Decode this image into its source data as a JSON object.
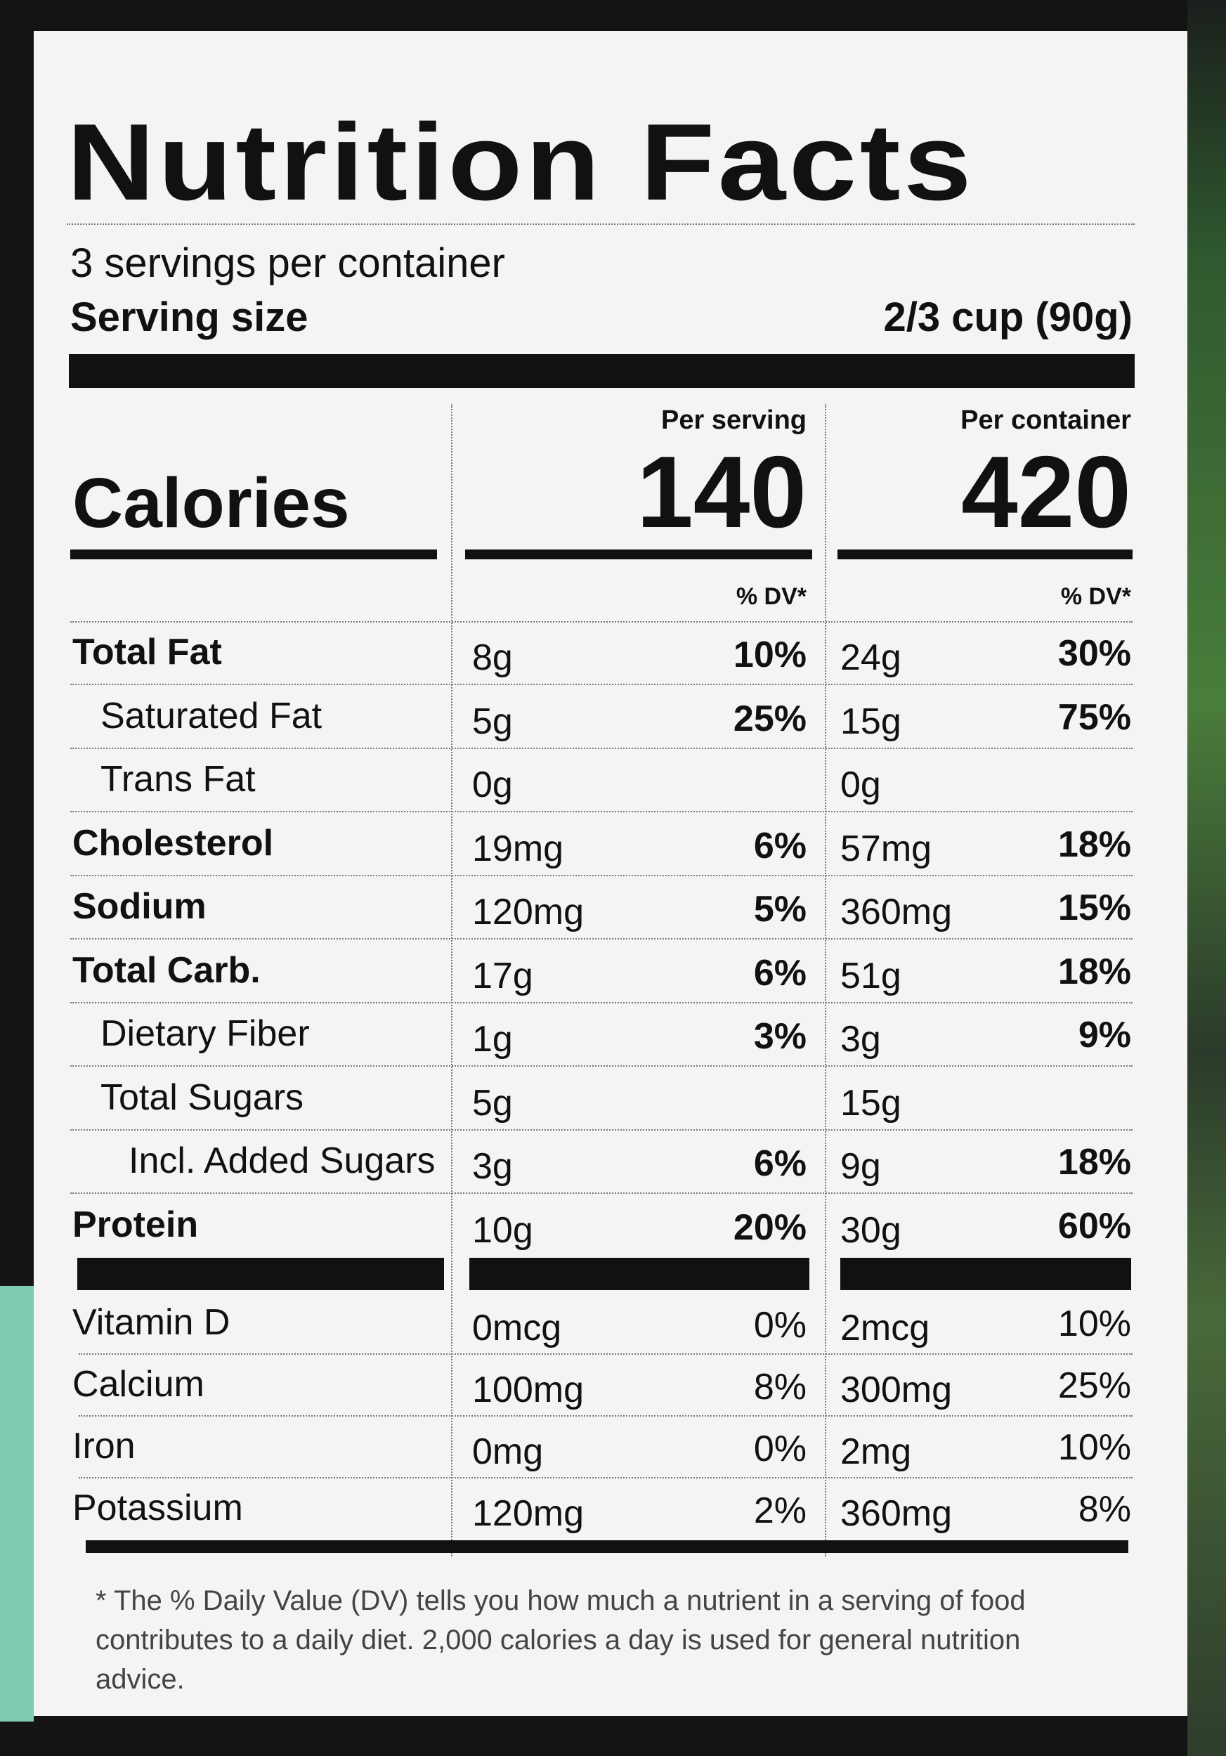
{
  "title": "Nutrition Facts",
  "servings_per_container": "3 servings per container",
  "serving_size": {
    "label": "Serving size",
    "value": "2/3 cup (90g)"
  },
  "columns": {
    "per_serving": "Per serving",
    "per_container": "Per container"
  },
  "calories": {
    "label": "Calories",
    "per_serving": "140",
    "per_container": "420"
  },
  "dv_header": {
    "per_serving": "% DV*",
    "per_container": "% DV*"
  },
  "nutrients": [
    {
      "name": "Total Fat",
      "serving_amount": "8g",
      "serving_dv": "10%",
      "container_amount": "24g",
      "container_dv": "30%"
    },
    {
      "name": "Saturated Fat",
      "serving_amount": "5g",
      "serving_dv": "25%",
      "container_amount": "15g",
      "container_dv": "75%"
    },
    {
      "name": "Trans Fat",
      "serving_amount": "0g",
      "container_amount": "0g"
    },
    {
      "name": "Cholesterol",
      "serving_amount": "19mg",
      "serving_dv": "6%",
      "container_amount": "57mg",
      "container_dv": "18%"
    },
    {
      "name": "Sodium",
      "serving_amount": "120mg",
      "serving_dv": "5%",
      "container_amount": "360mg",
      "container_dv": "15%"
    },
    {
      "name": "Total Carb.",
      "serving_amount": "17g",
      "serving_dv": "6%",
      "container_amount": "51g",
      "container_dv": "18%"
    },
    {
      "name": "Dietary Fiber",
      "serving_amount": "1g",
      "serving_dv": "3%",
      "container_amount": "3g",
      "container_dv": "9%"
    },
    {
      "name": "Total Sugars",
      "serving_amount": "5g",
      "container_amount": "15g"
    },
    {
      "name": "Incl. Added Sugars",
      "serving_amount": "3g",
      "serving_dv": "6%",
      "container_amount": "9g",
      "container_dv": "18%"
    },
    {
      "name": "Protein",
      "serving_amount": "10g",
      "serving_dv": "20%",
      "container_amount": "30g",
      "container_dv": "60%"
    }
  ],
  "vitamins": [
    {
      "name": "Vitamin D",
      "serving_amount": "0mcg",
      "serving_dv": "0%",
      "container_amount": "2mcg",
      "container_dv": "10%"
    },
    {
      "name": "Calcium",
      "serving_amount": "100mg",
      "serving_dv": "8%",
      "container_amount": "300mg",
      "container_dv": "25%"
    },
    {
      "name": "Iron",
      "serving_amount": "0mg",
      "serving_dv": "0%",
      "container_amount": "2mg",
      "container_dv": "10%"
    },
    {
      "name": "Potassium",
      "serving_amount": "120mg",
      "serving_dv": "2%",
      "container_amount": "360mg",
      "container_dv": "8%"
    }
  ],
  "footnote": "* The % Daily Value (DV) tells you how much a nutrient in a serving of food contributes to a daily diet. 2,000 calories a day is used for general nutrition advice."
}
